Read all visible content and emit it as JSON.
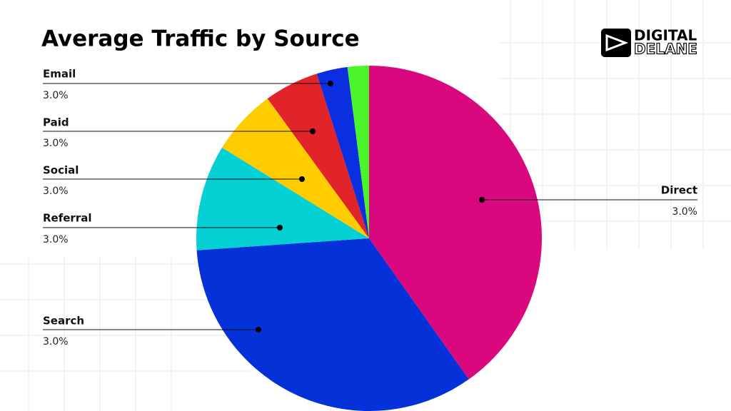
{
  "chart_data": {
    "type": "pie",
    "title": "Average Traffic by Source",
    "logo": [
      "DIGITAL",
      "DELANE"
    ],
    "categories": [
      "Direct",
      "Search",
      "Referral",
      "Social",
      "Paid",
      "Email",
      null
    ],
    "values": [
      40.2,
      33.7,
      9.9,
      6.2,
      5.1,
      2.9,
      2.0
    ],
    "annotations": [
      "3.0%",
      "3.0%",
      "3.0%",
      "3.0%",
      "3.0%",
      "3.0%",
      null
    ],
    "colors": [
      "#d9087f",
      "#0532d8",
      "#05d0d3",
      "#ffcc00",
      "#e0242a",
      "#0a2ee0",
      "#4cf52a"
    ]
  }
}
